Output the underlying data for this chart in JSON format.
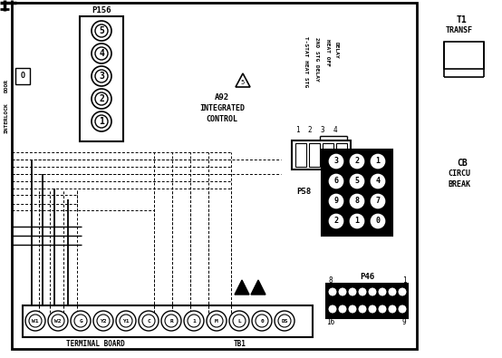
{
  "bg_color": "#ffffff",
  "line_color": "#000000",
  "fig_width": 5.54,
  "fig_height": 3.95,
  "p156_pins": [
    "5",
    "4",
    "3",
    "2",
    "1"
  ],
  "p58_pins": [
    [
      "3",
      "2",
      "1"
    ],
    [
      "6",
      "5",
      "4"
    ],
    [
      "9",
      "8",
      "7"
    ],
    [
      "2",
      "1",
      "0"
    ]
  ],
  "tb1_pins": [
    "W1",
    "W2",
    "G",
    "Y2",
    "Y1",
    "C",
    "R",
    "1",
    "M",
    "L",
    "0",
    "DS"
  ]
}
